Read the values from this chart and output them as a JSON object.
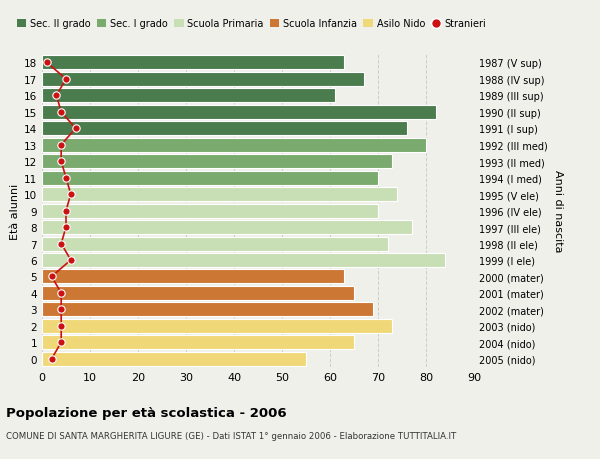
{
  "ages": [
    18,
    17,
    16,
    15,
    14,
    13,
    12,
    11,
    10,
    9,
    8,
    7,
    6,
    5,
    4,
    3,
    2,
    1,
    0
  ],
  "values": [
    63,
    67,
    61,
    82,
    76,
    80,
    73,
    70,
    74,
    70,
    77,
    72,
    84,
    63,
    65,
    69,
    73,
    65,
    55
  ],
  "stranieri": [
    1,
    5,
    3,
    4,
    7,
    4,
    4,
    5,
    6,
    5,
    5,
    4,
    6,
    2,
    4,
    4,
    4,
    4,
    2
  ],
  "right_labels": [
    "1987 (V sup)",
    "1988 (IV sup)",
    "1989 (III sup)",
    "1990 (II sup)",
    "1991 (I sup)",
    "1992 (III med)",
    "1993 (II med)",
    "1994 (I med)",
    "1995 (V ele)",
    "1996 (IV ele)",
    "1997 (III ele)",
    "1998 (II ele)",
    "1999 (I ele)",
    "2000 (mater)",
    "2001 (mater)",
    "2002 (mater)",
    "2003 (nido)",
    "2004 (nido)",
    "2005 (nido)"
  ],
  "bar_colors": [
    "#4a7c4e",
    "#4a7c4e",
    "#4a7c4e",
    "#4a7c4e",
    "#4a7c4e",
    "#7aaa6e",
    "#7aaa6e",
    "#7aaa6e",
    "#c8deb4",
    "#c8deb4",
    "#c8deb4",
    "#c8deb4",
    "#c8deb4",
    "#cc7733",
    "#cc7733",
    "#cc7733",
    "#f0d878",
    "#f0d878",
    "#f0d878"
  ],
  "legend_labels": [
    "Sec. II grado",
    "Sec. I grado",
    "Scuola Primaria",
    "Scuola Infanzia",
    "Asilo Nido",
    "Stranieri"
  ],
  "legend_colors": [
    "#4a7c4e",
    "#7aaa6e",
    "#c8deb4",
    "#cc7733",
    "#f0d878",
    "#cc1111"
  ],
  "title": "Popolazione per età scolastica - 2006",
  "subtitle": "COMUNE DI SANTA MARGHERITA LIGURE (GE) - Dati ISTAT 1° gennaio 2006 - Elaborazione TUTTITALIA.IT",
  "ylabel_left": "Età alunni",
  "ylabel_right": "Anni di nascita",
  "xlim": [
    0,
    90
  ],
  "background_color": "#f0f0eb",
  "stranieri_color": "#cc1111",
  "stranieri_line_color": "#cc1111"
}
